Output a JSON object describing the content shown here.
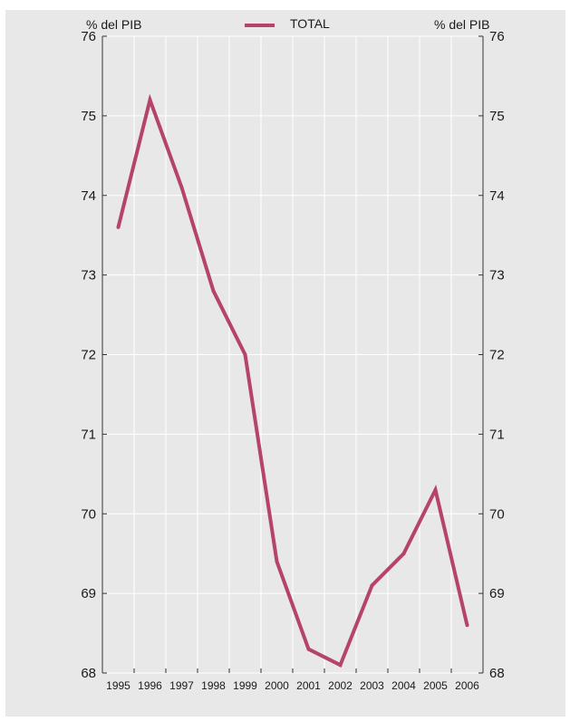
{
  "chart_data": {
    "type": "line",
    "categories": [
      "1995",
      "1996",
      "1997",
      "1998",
      "1999",
      "2000",
      "2001",
      "2002",
      "2003",
      "2004",
      "2005",
      "2006"
    ],
    "series": [
      {
        "name": "TOTAL",
        "color": "#b5436a",
        "values": [
          73.6,
          75.2,
          74.1,
          72.8,
          72.0,
          69.4,
          68.3,
          68.1,
          69.1,
          69.5,
          70.3,
          68.6
        ]
      }
    ],
    "ylabel_left": "% del PIB",
    "ylabel_right": "% del PIB",
    "ylim": [
      68,
      76
    ],
    "yticks": [
      "68",
      "69",
      "70",
      "71",
      "72",
      "73",
      "74",
      "75",
      "76"
    ],
    "grid": true,
    "legend": "top-center"
  }
}
